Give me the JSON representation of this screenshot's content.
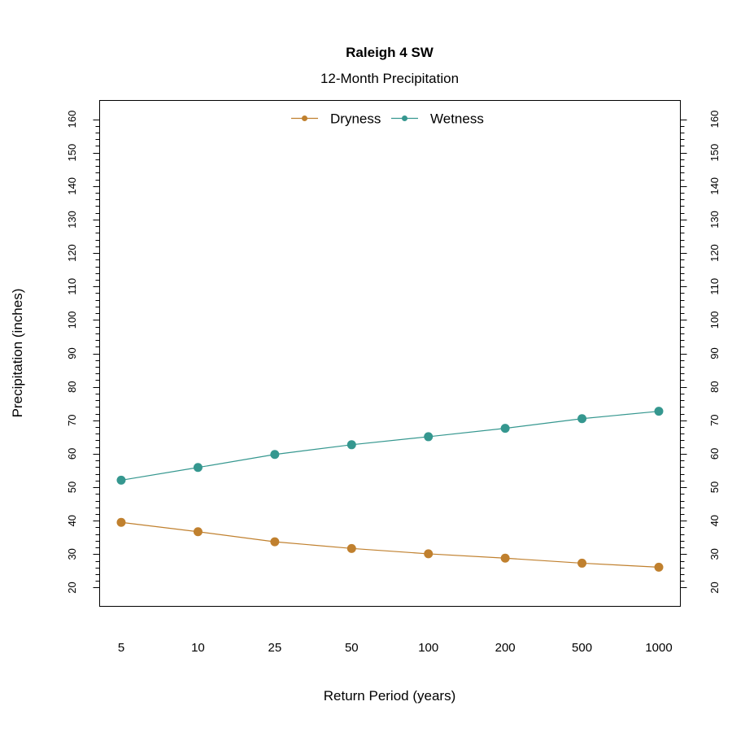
{
  "chart_data": {
    "type": "line",
    "title": "Raleigh 4 SW",
    "subtitle": "12-Month Precipitation",
    "xlabel": "Return Period (years)",
    "ylabel": "Precipitation (inches)",
    "categories": [
      "5",
      "10",
      "25",
      "50",
      "100",
      "200",
      "500",
      "1000"
    ],
    "ylim": [
      14.4,
      165.6
    ],
    "yticks": [
      20,
      30,
      40,
      50,
      60,
      70,
      80,
      90,
      100,
      110,
      120,
      130,
      140,
      150,
      160
    ],
    "yminor_step": 2,
    "grid": false,
    "legend_position": "top",
    "series": [
      {
        "name": "Dryness",
        "color": "#C0802E",
        "values": [
          39.5,
          36.7,
          33.7,
          31.7,
          30.1,
          28.8,
          27.3,
          26.1
        ]
      },
      {
        "name": "Wetness",
        "color": "#35978F",
        "values": [
          52.1,
          55.9,
          59.8,
          62.7,
          65.1,
          67.6,
          70.5,
          72.7
        ]
      }
    ]
  }
}
